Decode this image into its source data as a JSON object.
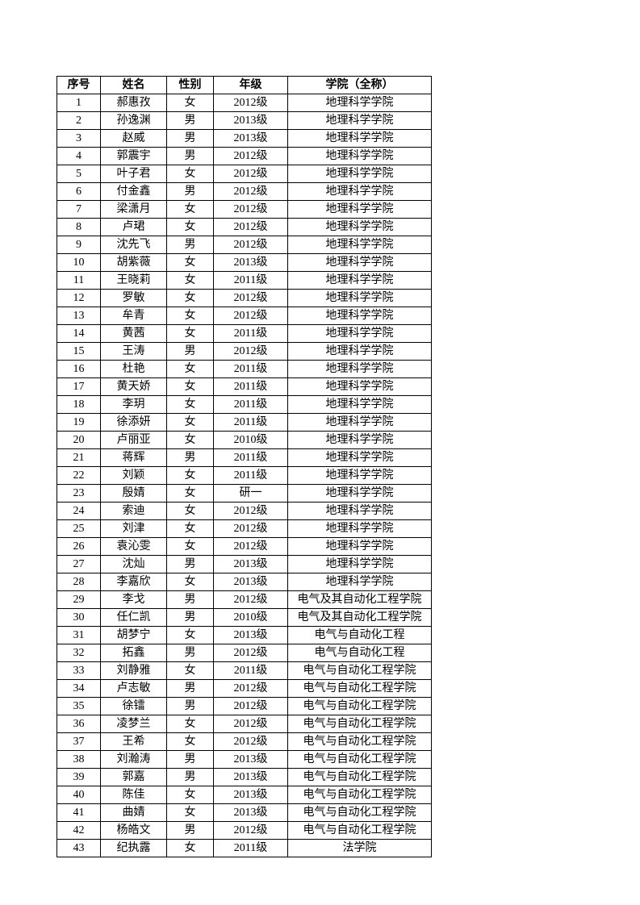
{
  "table": {
    "headers": {
      "seq": "序号",
      "name": "姓名",
      "gender": "性别",
      "grade": "年级",
      "college": "学院（全称）"
    },
    "rows": [
      {
        "seq": "1",
        "name": "郝惠孜",
        "gender": "女",
        "grade": "2012级",
        "college": "地理科学学院"
      },
      {
        "seq": "2",
        "name": "孙逸渊",
        "gender": "男",
        "grade": "2013级",
        "college": "地理科学学院"
      },
      {
        "seq": "3",
        "name": "赵威",
        "gender": "男",
        "grade": "2013级",
        "college": "地理科学学院"
      },
      {
        "seq": "4",
        "name": "郭震宇",
        "gender": "男",
        "grade": "2012级",
        "college": "地理科学学院"
      },
      {
        "seq": "5",
        "name": "叶子君",
        "gender": "女",
        "grade": "2012级",
        "college": "地理科学学院"
      },
      {
        "seq": "6",
        "name": "付金鑫",
        "gender": "男",
        "grade": "2012级",
        "college": "地理科学学院"
      },
      {
        "seq": "7",
        "name": "梁潇月",
        "gender": "女",
        "grade": "2012级",
        "college": "地理科学学院"
      },
      {
        "seq": "8",
        "name": "卢珺",
        "gender": "女",
        "grade": "2012级",
        "college": "地理科学学院"
      },
      {
        "seq": "9",
        "name": "沈先飞",
        "gender": "男",
        "grade": "2012级",
        "college": "地理科学学院"
      },
      {
        "seq": "10",
        "name": "胡紫薇",
        "gender": "女",
        "grade": "2013级",
        "college": "地理科学学院"
      },
      {
        "seq": "11",
        "name": "王晓莉",
        "gender": "女",
        "grade": "2011级",
        "college": "地理科学学院"
      },
      {
        "seq": "12",
        "name": "罗敏",
        "gender": "女",
        "grade": "2012级",
        "college": "地理科学学院"
      },
      {
        "seq": "13",
        "name": "牟青",
        "gender": "女",
        "grade": "2012级",
        "college": "地理科学学院"
      },
      {
        "seq": "14",
        "name": "黄茜",
        "gender": "女",
        "grade": "2011级",
        "college": "地理科学学院"
      },
      {
        "seq": "15",
        "name": "王涛",
        "gender": "男",
        "grade": "2012级",
        "college": "地理科学学院"
      },
      {
        "seq": "16",
        "name": "杜艳",
        "gender": "女",
        "grade": "2011级",
        "college": "地理科学学院"
      },
      {
        "seq": "17",
        "name": "黄天娇",
        "gender": "女",
        "grade": "2011级",
        "college": "地理科学学院"
      },
      {
        "seq": "18",
        "name": "李玥",
        "gender": "女",
        "grade": "2011级",
        "college": "地理科学学院"
      },
      {
        "seq": "19",
        "name": "徐添妍",
        "gender": "女",
        "grade": "2011级",
        "college": "地理科学学院"
      },
      {
        "seq": "20",
        "name": "卢丽亚",
        "gender": "女",
        "grade": "2010级",
        "college": "地理科学学院"
      },
      {
        "seq": "21",
        "name": "蒋辉",
        "gender": "男",
        "grade": "2011级",
        "college": "地理科学学院"
      },
      {
        "seq": "22",
        "name": "刘颖",
        "gender": "女",
        "grade": "2011级",
        "college": "地理科学学院"
      },
      {
        "seq": "23",
        "name": "殷婧",
        "gender": "女",
        "grade": "研一",
        "college": "地理科学学院"
      },
      {
        "seq": "24",
        "name": "索迪",
        "gender": "女",
        "grade": "2012级",
        "college": "地理科学学院"
      },
      {
        "seq": "25",
        "name": "刘津",
        "gender": "女",
        "grade": "2012级",
        "college": "地理科学学院"
      },
      {
        "seq": "26",
        "name": "袁沁雯",
        "gender": "女",
        "grade": "2012级",
        "college": "地理科学学院"
      },
      {
        "seq": "27",
        "name": "沈灿",
        "gender": "男",
        "grade": "2013级",
        "college": "地理科学学院"
      },
      {
        "seq": "28",
        "name": "李嘉欣",
        "gender": "女",
        "grade": "2013级",
        "college": "地理科学学院"
      },
      {
        "seq": "29",
        "name": "李戈",
        "gender": "男",
        "grade": "2012级",
        "college": "电气及其自动化工程学院"
      },
      {
        "seq": "30",
        "name": "任仁凯",
        "gender": "男",
        "grade": "2010级",
        "college": "电气及其自动化工程学院"
      },
      {
        "seq": "31",
        "name": "胡梦宁",
        "gender": "女",
        "grade": "2013级",
        "college": "电气与自动化工程"
      },
      {
        "seq": "32",
        "name": "拓鑫",
        "gender": "男",
        "grade": "2012级",
        "college": "电气与自动化工程"
      },
      {
        "seq": "33",
        "name": "刘静雅",
        "gender": "女",
        "grade": "2011级",
        "college": "电气与自动化工程学院"
      },
      {
        "seq": "34",
        "name": "卢志敏",
        "gender": "男",
        "grade": "2012级",
        "college": "电气与自动化工程学院"
      },
      {
        "seq": "35",
        "name": "徐镭",
        "gender": "男",
        "grade": "2012级",
        "college": "电气与自动化工程学院"
      },
      {
        "seq": "36",
        "name": "凌梦兰",
        "gender": "女",
        "grade": "2012级",
        "college": "电气与自动化工程学院"
      },
      {
        "seq": "37",
        "name": "王希",
        "gender": "女",
        "grade": "2012级",
        "college": "电气与自动化工程学院"
      },
      {
        "seq": "38",
        "name": "刘瀚涛",
        "gender": "男",
        "grade": "2013级",
        "college": "电气与自动化工程学院"
      },
      {
        "seq": "39",
        "name": "郭嘉",
        "gender": "男",
        "grade": "2013级",
        "college": "电气与自动化工程学院"
      },
      {
        "seq": "40",
        "name": "陈佳",
        "gender": "女",
        "grade": "2013级",
        "college": "电气与自动化工程学院"
      },
      {
        "seq": "41",
        "name": "曲婧",
        "gender": "女",
        "grade": "2013级",
        "college": "电气与自动化工程学院"
      },
      {
        "seq": "42",
        "name": "杨皓文",
        "gender": "男",
        "grade": "2012级",
        "college": "电气与自动化工程学院"
      },
      {
        "seq": "43",
        "name": "纪执露",
        "gender": "女",
        "grade": "2011级",
        "college": "法学院"
      }
    ]
  }
}
